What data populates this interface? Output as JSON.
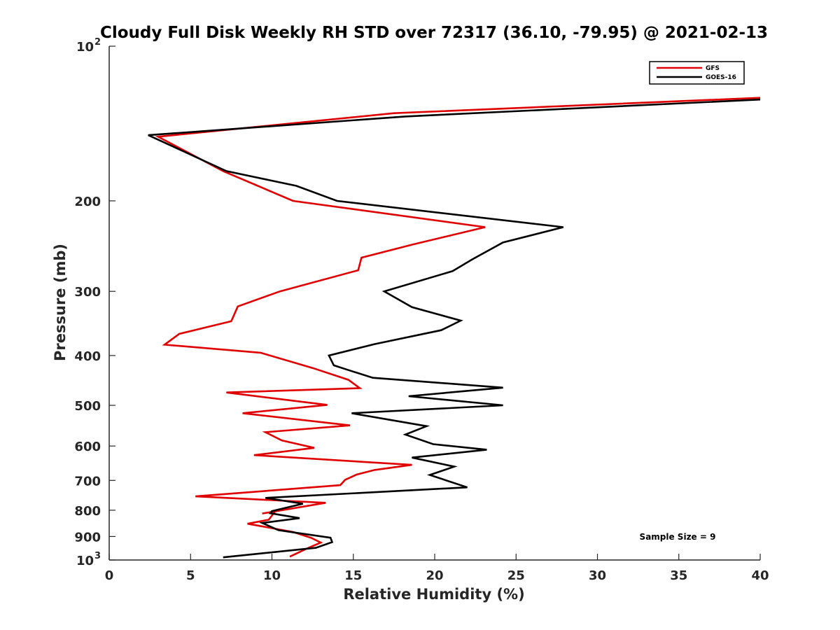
{
  "chart_data": {
    "type": "line",
    "title": "Cloudy Full Disk Weekly RH STD over 72317 (36.10, -79.95) @ 2021-02-13",
    "xlabel": "Relative Humidity (%)",
    "ylabel": "Pressure (mb)",
    "xlim": [
      0,
      40
    ],
    "ylim": [
      100,
      1000
    ],
    "y_scale": "log",
    "y_reversed": true,
    "x_ticks": [
      0,
      5,
      10,
      15,
      20,
      25,
      30,
      35,
      40
    ],
    "y_ticks": [
      100,
      200,
      300,
      400,
      500,
      600,
      700,
      800,
      900,
      1000
    ],
    "y_tick_labels": [
      {
        "value": 200,
        "text": "200"
      },
      {
        "value": 300,
        "text": "300"
      },
      {
        "value": 400,
        "text": "400"
      },
      {
        "value": 500,
        "text": "500"
      },
      {
        "value": 600,
        "text": "600"
      },
      {
        "value": 700,
        "text": "700"
      },
      {
        "value": 800,
        "text": "800"
      },
      {
        "value": 900,
        "text": "900"
      }
    ],
    "y_power_labels": [
      {
        "value": 100,
        "base": "10",
        "exp": "2"
      },
      {
        "value": 1000,
        "base": "10",
        "exp": "3"
      }
    ],
    "grid": false,
    "legend_position": "top-right",
    "annotation": "Sample Size = 9",
    "series": [
      {
        "name": "GFS",
        "color": "#e00000",
        "points": [
          [
            40.0,
            126
          ],
          [
            17.5,
            135
          ],
          [
            3.0,
            150
          ],
          [
            7.0,
            175
          ],
          [
            11.3,
            200
          ],
          [
            23.1,
            225
          ],
          [
            18.7,
            243
          ],
          [
            15.5,
            258
          ],
          [
            15.3,
            273
          ],
          [
            10.5,
            300
          ],
          [
            7.9,
            321
          ],
          [
            7.5,
            343
          ],
          [
            4.3,
            363
          ],
          [
            3.4,
            381
          ],
          [
            9.3,
            395
          ],
          [
            12.5,
            423
          ],
          [
            14.7,
            446
          ],
          [
            15.4,
            463
          ],
          [
            7.2,
            472
          ],
          [
            13.4,
            499
          ],
          [
            8.2,
            518
          ],
          [
            14.8,
            547
          ],
          [
            9.6,
            564
          ],
          [
            10.6,
            585
          ],
          [
            12.6,
            605
          ],
          [
            8.9,
            625
          ],
          [
            18.6,
            653
          ],
          [
            16.3,
            668
          ],
          [
            15.2,
            682
          ],
          [
            14.5,
            698
          ],
          [
            14.2,
            715
          ],
          [
            5.3,
            752
          ],
          [
            13.3,
            774
          ],
          [
            9.4,
            812
          ],
          [
            10.2,
            804
          ],
          [
            9.8,
            835
          ],
          [
            8.5,
            850
          ],
          [
            11.3,
            882
          ],
          [
            12.4,
            905
          ],
          [
            13.0,
            925
          ],
          [
            12.3,
            945
          ],
          [
            11.1,
            985
          ]
        ]
      },
      {
        "name": "GOES-16",
        "color": "#000000",
        "points": [
          [
            40.0,
            127
          ],
          [
            18.2,
            137
          ],
          [
            2.4,
            149
          ],
          [
            7.2,
            175
          ],
          [
            11.5,
            187
          ],
          [
            14.0,
            200
          ],
          [
            27.9,
            225
          ],
          [
            24.2,
            241
          ],
          [
            22.3,
            260
          ],
          [
            21.1,
            274
          ],
          [
            16.9,
            300
          ],
          [
            18.6,
            322
          ],
          [
            21.6,
            342
          ],
          [
            20.4,
            357
          ],
          [
            16.3,
            380
          ],
          [
            13.5,
            400
          ],
          [
            13.8,
            418
          ],
          [
            14.7,
            427
          ],
          [
            16.2,
            442
          ],
          [
            24.2,
            462
          ],
          [
            18.4,
            480
          ],
          [
            24.2,
            500
          ],
          [
            14.9,
            518
          ],
          [
            19.5,
            549
          ],
          [
            18.2,
            570
          ],
          [
            19.9,
            595
          ],
          [
            23.2,
            610
          ],
          [
            18.6,
            632
          ],
          [
            21.2,
            658
          ],
          [
            19.7,
            683
          ],
          [
            22.0,
            722
          ],
          [
            9.6,
            757
          ],
          [
            11.9,
            777
          ],
          [
            10.0,
            803
          ],
          [
            9.9,
            811
          ],
          [
            11.7,
            829
          ],
          [
            9.4,
            847
          ],
          [
            10.4,
            875
          ],
          [
            13.6,
            905
          ],
          [
            13.7,
            923
          ],
          [
            12.7,
            947
          ],
          [
            7.0,
            988
          ]
        ]
      }
    ]
  }
}
